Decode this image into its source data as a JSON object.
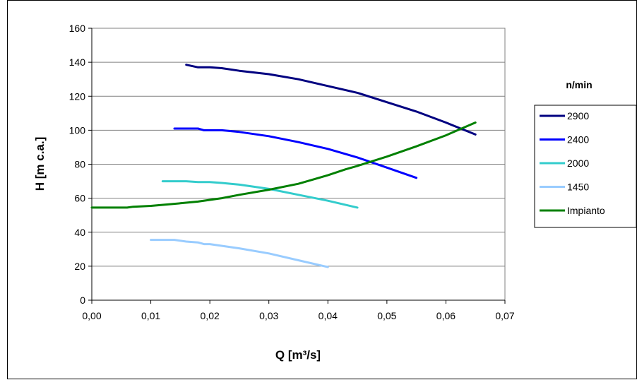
{
  "chart_data": {
    "type": "line",
    "xlabel": "Q [m³/s]",
    "ylabel": "H [m c.a.]",
    "xlim": [
      0,
      0.07
    ],
    "ylim": [
      0,
      160
    ],
    "x_ticks": [
      0,
      0.01,
      0.02,
      0.03,
      0.04,
      0.05,
      0.06,
      0.07
    ],
    "x_tick_labels": [
      "0,00",
      "0,01",
      "0,02",
      "0,03",
      "0,04",
      "0,05",
      "0,06",
      "0,07"
    ],
    "y_ticks": [
      0,
      20,
      40,
      60,
      80,
      100,
      120,
      140,
      160
    ],
    "y_tick_labels": [
      "0",
      "20",
      "40",
      "60",
      "80",
      "100",
      "120",
      "140",
      "160"
    ],
    "grid": "horizontal",
    "legend": {
      "title": "n/min",
      "placement": "right"
    },
    "series": [
      {
        "name": "2900",
        "color": "#000080",
        "x": [
          0.016,
          0.018,
          0.02,
          0.022,
          0.025,
          0.03,
          0.035,
          0.04,
          0.045,
          0.05,
          0.055,
          0.06,
          0.065
        ],
        "y": [
          138.5,
          137,
          137,
          136.5,
          135,
          133,
          130,
          126,
          122,
          116.5,
          111,
          104.5,
          97.5
        ]
      },
      {
        "name": "2400",
        "color": "#0000ff",
        "x": [
          0.014,
          0.016,
          0.018,
          0.019,
          0.02,
          0.022,
          0.025,
          0.03,
          0.035,
          0.04,
          0.045,
          0.05,
          0.055
        ],
        "y": [
          101,
          101,
          101,
          100,
          100,
          100,
          99,
          96.5,
          93,
          89,
          84,
          78,
          72
        ]
      },
      {
        "name": "2000",
        "color": "#33cccc",
        "x": [
          0.012,
          0.014,
          0.016,
          0.018,
          0.02,
          0.022,
          0.025,
          0.03,
          0.035,
          0.04,
          0.045
        ],
        "y": [
          70,
          70,
          70,
          69.5,
          69.5,
          69,
          68,
          65.5,
          62,
          58.5,
          54.5
        ]
      },
      {
        "name": "1450",
        "color": "#99ccff",
        "x": [
          0.01,
          0.012,
          0.014,
          0.016,
          0.018,
          0.019,
          0.02,
          0.025,
          0.03,
          0.035,
          0.04
        ],
        "y": [
          35.5,
          35.5,
          35.5,
          34.5,
          34,
          33,
          33,
          30.5,
          27.5,
          23.5,
          19.5
        ]
      },
      {
        "name": "Impianto",
        "color": "#008000",
        "x": [
          0,
          0.006,
          0.007,
          0.01,
          0.015,
          0.018,
          0.02,
          0.022,
          0.025,
          0.03,
          0.035,
          0.04,
          0.043,
          0.045,
          0.05,
          0.055,
          0.06,
          0.065
        ],
        "y": [
          54.5,
          54.5,
          55,
          55.5,
          57,
          58,
          59,
          60,
          62,
          65,
          68.5,
          73.5,
          77,
          79,
          84.5,
          90.5,
          97,
          104.5
        ]
      }
    ]
  }
}
